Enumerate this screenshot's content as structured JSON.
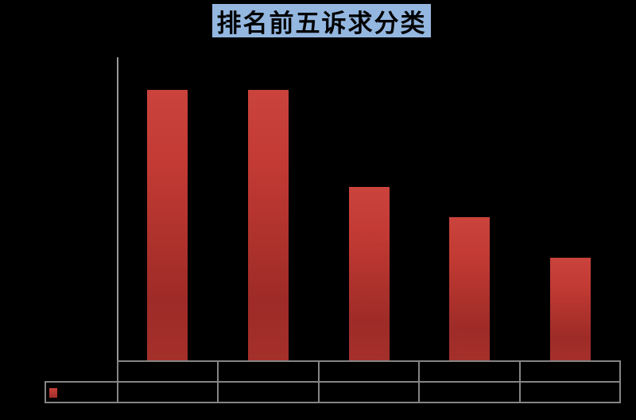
{
  "title": {
    "text": "排名前五诉求分类"
  },
  "colors": {
    "background": "#000000",
    "title_highlight": "#94b7e0",
    "title_text": "#000000",
    "bar_gradient_top": "#ca433c",
    "bar_gradient_upper": "#c23a33",
    "bar_gradient_lower": "#9e2b27",
    "bar_gradient_bottom": "#a5302b",
    "axis_line": "#9a9a9a",
    "table_border": "#858585",
    "legend_key": "#b8342e"
  },
  "chart_data": {
    "type": "bar",
    "title": "排名前五诉求分类",
    "categories": [
      "",
      "",
      "",
      "",
      ""
    ],
    "series": [
      {
        "name": "",
        "values_percent_of_max": [
          100,
          100,
          64,
          53,
          38
        ]
      }
    ],
    "xlabel": "",
    "ylabel": "",
    "grid": false,
    "legend_position": "bottom data-table row, left key cell",
    "note": "Category labels, numeric values and legend text are rendered black-on-black and are not legible in the screenshot; bar heights are captured as percent of the tallest bar."
  },
  "data_table": {
    "rows": 2,
    "columns": 5,
    "category_row_cells": [
      "",
      "",
      "",
      "",
      ""
    ],
    "legend_row_cells": [
      "",
      "",
      "",
      "",
      ""
    ]
  }
}
